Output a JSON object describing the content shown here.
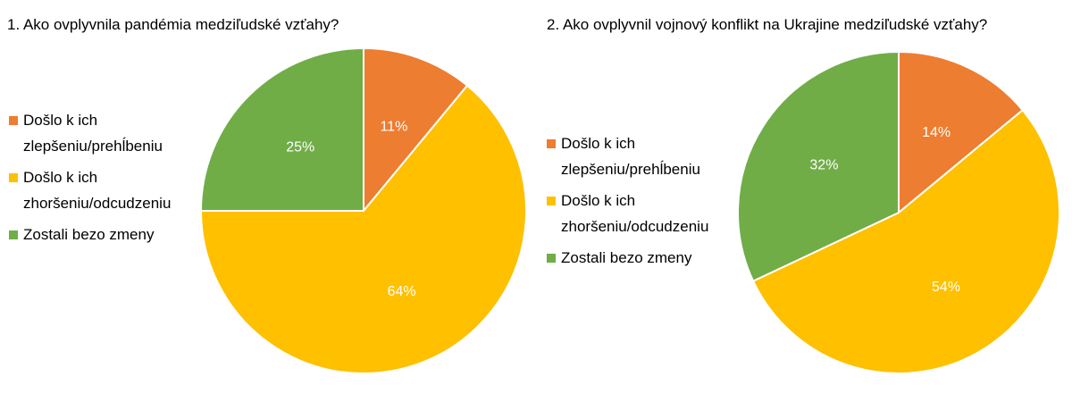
{
  "chart_data": [
    {
      "type": "pie",
      "title": "1. Ako ovplyvnila pandémia medziľudské vzťahy?",
      "categories": [
        "Došlo k ich zlepšeniu/prehĺbeniu",
        "Došlo k ich zhoršeniu/odcudzeniu",
        "Zostali bezo zmeny"
      ],
      "values": [
        11,
        64,
        25
      ],
      "data_labels": [
        "11%",
        "64%",
        "25%"
      ],
      "colors": [
        "#ED7D31",
        "#FFC000",
        "#70AD47"
      ],
      "legend_position": "left"
    },
    {
      "type": "pie",
      "title": "2. Ako ovplyvnil vojnový konflikt na Ukrajine medziľudské vzťahy?",
      "categories": [
        "Došlo k ich zlepšeniu/prehĺbeniu",
        "Došlo k ich zhoršeniu/odcudzeniu",
        "Zostali bezo zmeny"
      ],
      "values": [
        14,
        54,
        32
      ],
      "data_labels": [
        "14%",
        "54%",
        "32%"
      ],
      "colors": [
        "#ED7D31",
        "#FFC000",
        "#70AD47"
      ],
      "legend_position": "left"
    }
  ]
}
